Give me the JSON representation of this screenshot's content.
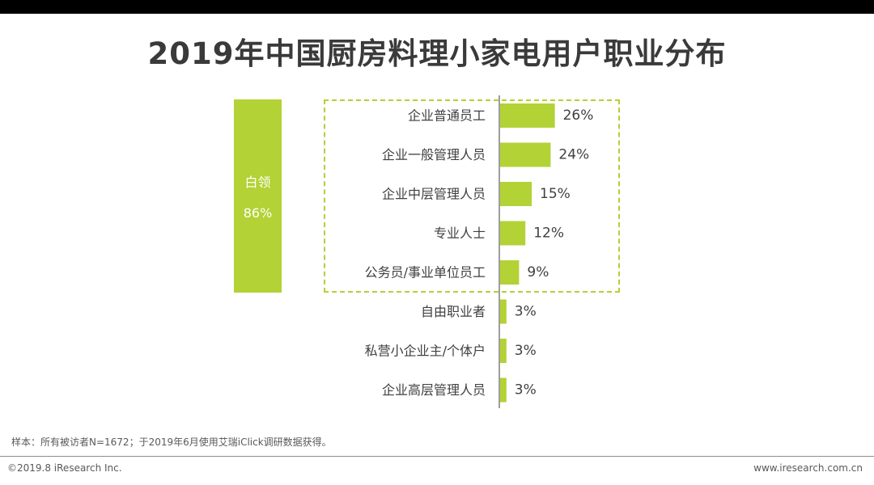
{
  "chart_data": {
    "type": "bar",
    "orientation": "horizontal",
    "title": "2019年中国厨房料理小家电用户职业分布",
    "categories": [
      "企业普通员工",
      "企业一般管理人员",
      "企业中层管理人员",
      "专业人士",
      "公务员/事业单位员工",
      "自由职业者",
      "私营小企业主/个体户",
      "企业高层管理人员"
    ],
    "values": [
      26,
      24,
      15,
      12,
      9,
      3,
      3,
      3
    ],
    "value_labels": [
      "26%",
      "24%",
      "15%",
      "12%",
      "9%",
      "3%",
      "3%",
      "3%"
    ],
    "bar_color": "#b2d235",
    "group": {
      "name": "白领",
      "value": "86%",
      "color": "#b2d235"
    }
  },
  "note": "样本：所有被访者N=1672；于2019年6月使用艾瑞iClick调研数据获得。",
  "footer": {
    "copyright": "©2019.8 iResearch Inc.",
    "website": "www.iresearch.com.cn"
  }
}
